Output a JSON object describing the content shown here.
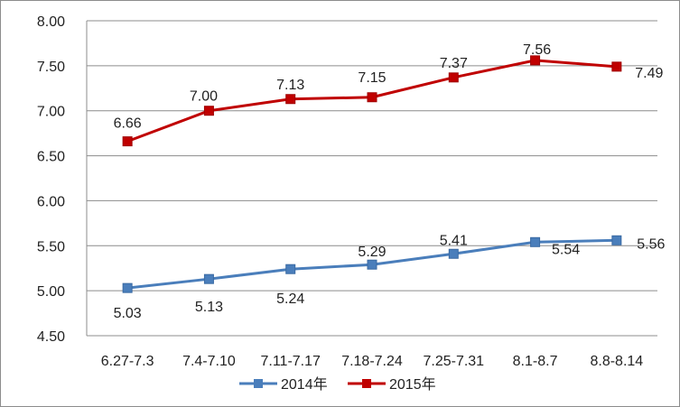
{
  "chart_data": {
    "type": "line",
    "title": "",
    "xlabel": "",
    "ylabel": "",
    "categories": [
      "6.27-7.3",
      "7.4-7.10",
      "7.11-7.17",
      "7.18-7.24",
      "7.25-7.31",
      "8.1-8.7",
      "8.8-8.14"
    ],
    "ylim": [
      4.5,
      8.0
    ],
    "yticks": [
      "4.50",
      "5.00",
      "5.50",
      "6.00",
      "6.50",
      "7.00",
      "7.50",
      "8.00"
    ],
    "grid": true,
    "legend_position": "bottom",
    "series": [
      {
        "name": "2014年",
        "color": "#4a7ebb",
        "values": [
          5.03,
          5.13,
          5.24,
          5.29,
          5.41,
          5.54,
          5.56
        ],
        "labels": [
          "5.03",
          "5.13",
          "5.24",
          "5.29",
          "5.41",
          "5.54",
          "5.56"
        ]
      },
      {
        "name": "2015年",
        "color": "#c00000",
        "values": [
          6.66,
          7.0,
          7.13,
          7.15,
          7.37,
          7.56,
          7.49
        ],
        "labels": [
          "6.66",
          "7.00",
          "7.13",
          "7.15",
          "7.37",
          "7.56",
          "7.49"
        ]
      }
    ]
  }
}
